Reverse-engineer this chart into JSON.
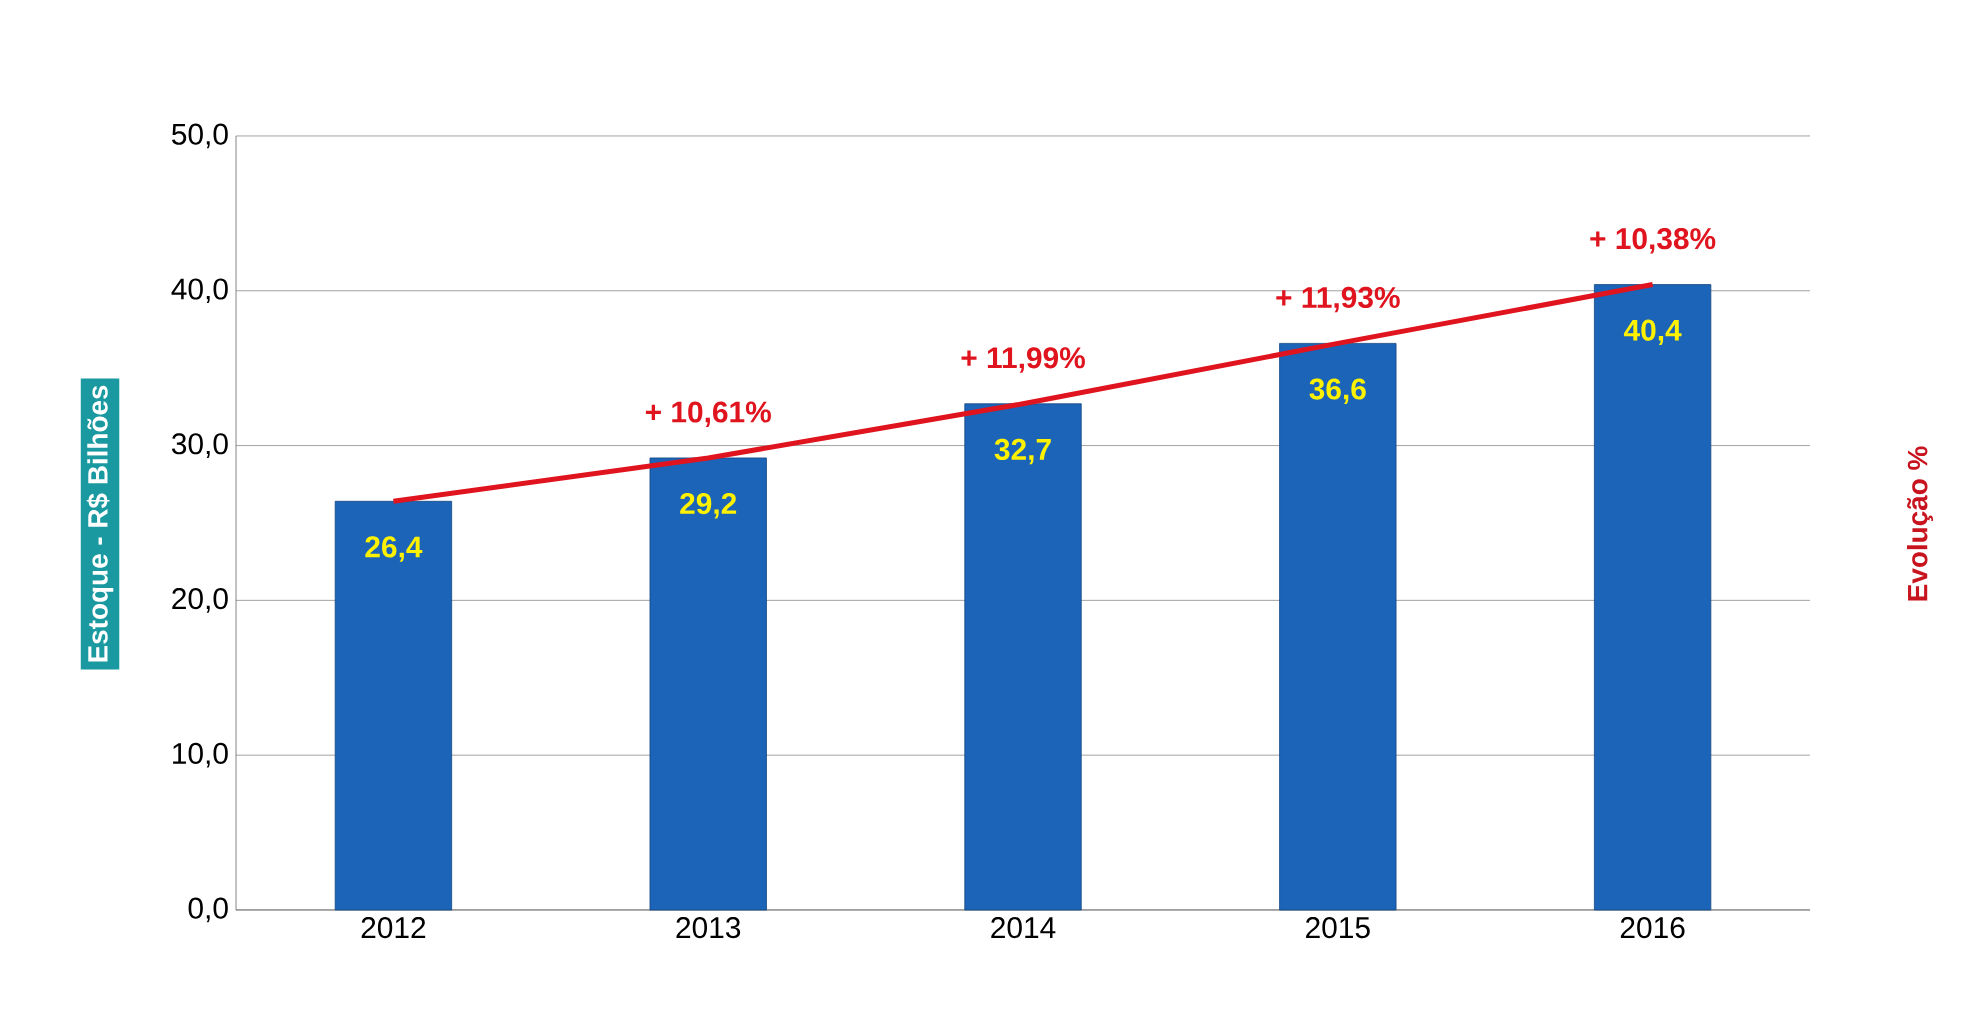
{
  "chart_data": {
    "type": "bar",
    "categories": [
      "2012",
      "2013",
      "2014",
      "2015",
      "2016"
    ],
    "series": [
      {
        "color": "#1c64b8",
        "values": [
          26.4,
          29.2,
          32.7,
          36.6,
          40.4
        ],
        "value_labels": [
          "26,4",
          "29,2",
          "32,7",
          "36,6",
          "40,4"
        ]
      },
      {
        "type": "line",
        "color": "#e0141e",
        "values": [
          26.4,
          29.2,
          32.7,
          36.6,
          40.4
        ]
      }
    ],
    "annotations": [
      {
        "text": "+ 10,61%",
        "x": "2013",
        "y": 29.2
      },
      {
        "text": "+ 11,99%",
        "x": "2014",
        "y": 32.7
      },
      {
        "text": "+ 11,93%",
        "x": "2015",
        "y": 36.6
      },
      {
        "text": "+ 10,38%",
        "x": "2016",
        "y": 40.4
      }
    ],
    "ylabel": "Estoque - R$ Bilhões",
    "y2label": "Evolução %",
    "ylim": [
      0,
      50
    ],
    "yticks": [
      {
        "value": 0,
        "label": "0,0"
      },
      {
        "value": 10,
        "label": "10,0"
      },
      {
        "value": 20,
        "label": "20,0"
      },
      {
        "value": 30,
        "label": "30,0"
      },
      {
        "value": 40,
        "label": "40,0"
      },
      {
        "value": 50,
        "label": "50,0"
      }
    ],
    "grid": "y",
    "line_style": "solid"
  }
}
